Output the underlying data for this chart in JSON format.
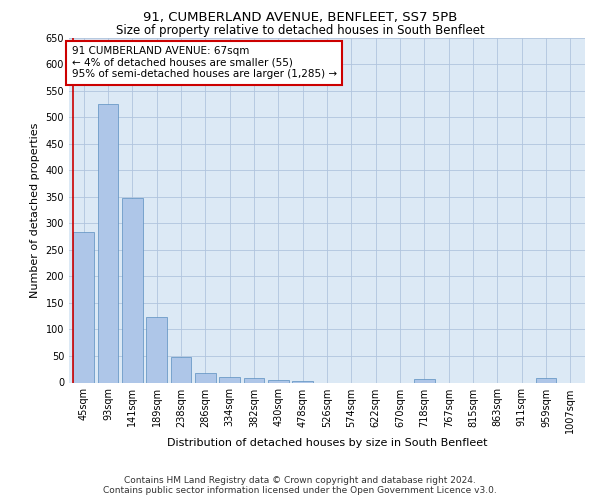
{
  "title": "91, CUMBERLAND AVENUE, BENFLEET, SS7 5PB",
  "subtitle": "Size of property relative to detached houses in South Benfleet",
  "xlabel": "Distribution of detached houses by size in South Benfleet",
  "ylabel": "Number of detached properties",
  "footer_line1": "Contains HM Land Registry data © Crown copyright and database right 2024.",
  "footer_line2": "Contains public sector information licensed under the Open Government Licence v3.0.",
  "categories": [
    "45sqm",
    "93sqm",
    "141sqm",
    "189sqm",
    "238sqm",
    "286sqm",
    "334sqm",
    "382sqm",
    "430sqm",
    "478sqm",
    "526sqm",
    "574sqm",
    "622sqm",
    "670sqm",
    "718sqm",
    "767sqm",
    "815sqm",
    "863sqm",
    "911sqm",
    "959sqm",
    "1007sqm"
  ],
  "values": [
    283,
    524,
    347,
    123,
    48,
    18,
    10,
    8,
    5,
    3,
    0,
    0,
    0,
    0,
    7,
    0,
    0,
    0,
    0,
    8,
    0
  ],
  "bar_color": "#aec6e8",
  "bar_edge_color": "#5a8fc0",
  "annotation_box_text": "91 CUMBERLAND AVENUE: 67sqm\n← 4% of detached houses are smaller (55)\n95% of semi-detached houses are larger (1,285) →",
  "annotation_box_color": "#ffffff",
  "annotation_box_edge_color": "#cc0000",
  "vline_color": "#cc0000",
  "ylim": [
    0,
    650
  ],
  "yticks": [
    0,
    50,
    100,
    150,
    200,
    250,
    300,
    350,
    400,
    450,
    500,
    550,
    600,
    650
  ],
  "grid_color": "#b0c4de",
  "bg_color": "#dce9f5",
  "title_fontsize": 9.5,
  "subtitle_fontsize": 8.5,
  "axis_label_fontsize": 8,
  "tick_fontsize": 7,
  "annotation_fontsize": 7.5,
  "footer_fontsize": 6.5
}
